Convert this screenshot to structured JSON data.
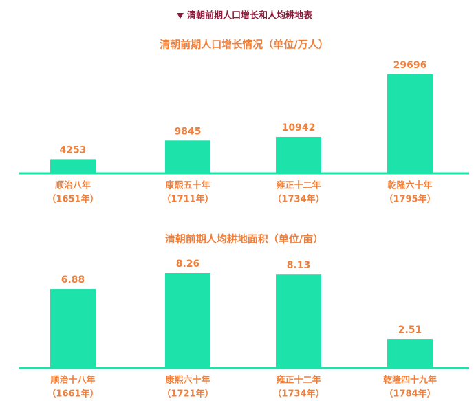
{
  "header": {
    "title": "清朝前期人口增长和人均耕地表"
  },
  "chart_data": [
    {
      "type": "bar",
      "title": "清朝前期人口增长情况（单位/万人）",
      "categories": [
        "顺治八年",
        "康熙五十年",
        "雍正十二年",
        "乾隆六十年"
      ],
      "category_notes": [
        "（1651年）",
        "（1711年）",
        "（1734年）",
        "（1795年）"
      ],
      "values": [
        4253,
        9845,
        10942,
        29696
      ],
      "color": "#1de3aa"
    },
    {
      "type": "bar",
      "title": "清朝前期人均耕地面积（单位/亩）",
      "categories": [
        "顺治十八年",
        "康熙六十年",
        "雍正十二年",
        "乾隆四十九年"
      ],
      "category_notes": [
        "（1661年）",
        "（1721年）",
        "（1734年）",
        "（1784年）"
      ],
      "values": [
        6.88,
        8.26,
        8.13,
        2.51
      ],
      "color": "#1de3aa"
    }
  ]
}
